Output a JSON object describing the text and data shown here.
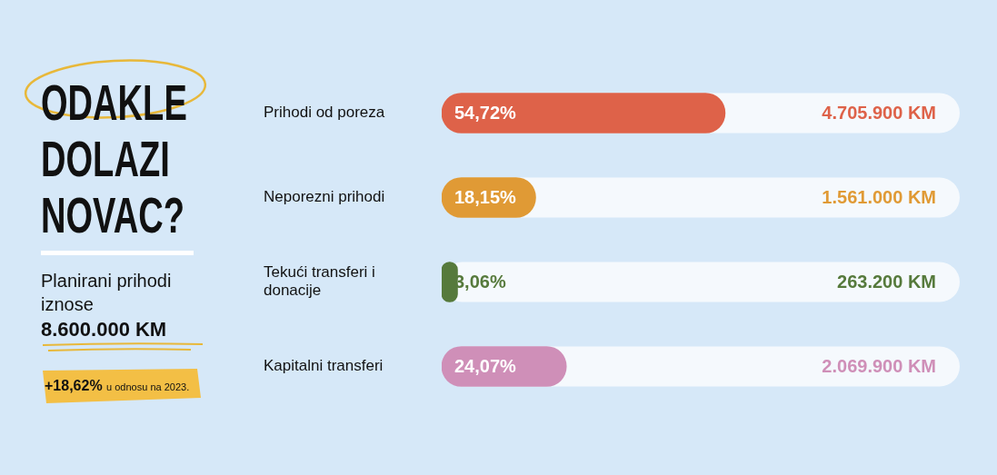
{
  "chart_data": {
    "type": "bar",
    "orientation": "horizontal",
    "title": "ODAKLE DOLAZI NOVAC?",
    "subtitle": "Planirani prihodi iznose",
    "categories": [
      "Prihodi od poreza",
      "Neporezni prihodi",
      "Tekući transferi i donacije",
      "Kapitalni transferi"
    ],
    "values": [
      54.72,
      18.15,
      3.06,
      24.07
    ],
    "colors": [
      "#de6249",
      "#e09a35",
      "#567a3c",
      "#cf8fb8"
    ],
    "value_labels": [
      "54,72%",
      "18,15%",
      "3,06%",
      "24,07%"
    ],
    "xlim": [
      0,
      100
    ],
    "tick_labels": "y",
    "annotations": [
      "8.600.000 KM",
      "+18,62%",
      "u odnosu na 2023.",
      "4.705.900 KM",
      "1.561.000 KM",
      "263.200 KM",
      "2.069.900 KM"
    ]
  }
}
